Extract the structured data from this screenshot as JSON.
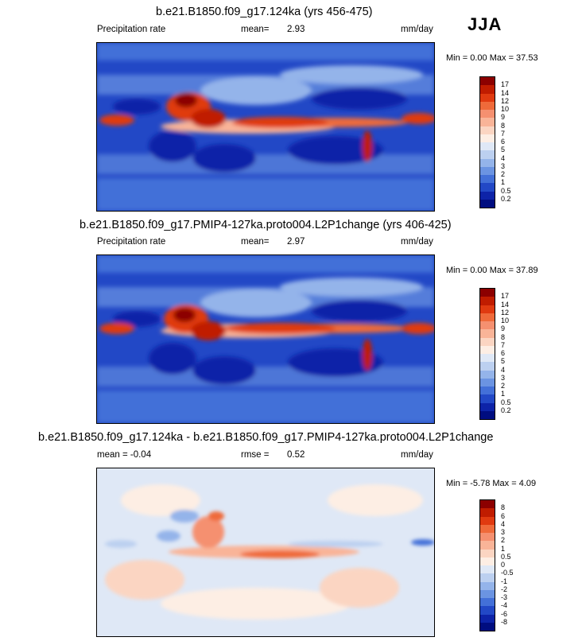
{
  "season": "JJA",
  "panels": [
    {
      "title": "b.e21.B1850.f09_g17.124ka (yrs 456-475)",
      "left_label": "Precipitation rate",
      "center_label": "mean=",
      "center_value": "2.93",
      "right_label": "mm/day",
      "minmax": "Min =   0.00 Max =  37.53",
      "colorbar": {
        "labels": [
          "17",
          "14",
          "12",
          "10",
          "9",
          "8",
          "7",
          "6",
          "5",
          "4",
          "3",
          "2",
          "1",
          "0.5",
          "0.2"
        ],
        "colors": [
          "#8c0000",
          "#c01c00",
          "#e03a10",
          "#ef6a3a",
          "#f59070",
          "#f9b498",
          "#fbd5c2",
          "#fdeee4",
          "#dfe8f6",
          "#bcd0f0",
          "#94b4ea",
          "#6b94e2",
          "#4370d8",
          "#2248c6",
          "#0d23a8",
          "#000d80"
        ]
      }
    },
    {
      "title": "b.e21.B1850.f09_g17.PMIP4-127ka.proto004.L2P1change (yrs 406-425)",
      "left_label": "Precipitation rate",
      "center_label": "mean=",
      "center_value": "2.97",
      "right_label": "mm/day",
      "minmax": "Min =   0.00 Max =  37.89",
      "colorbar": {
        "labels": [
          "17",
          "14",
          "12",
          "10",
          "9",
          "8",
          "7",
          "6",
          "5",
          "4",
          "3",
          "2",
          "1",
          "0.5",
          "0.2"
        ],
        "colors": [
          "#8c0000",
          "#c01c00",
          "#e03a10",
          "#ef6a3a",
          "#f59070",
          "#f9b498",
          "#fbd5c2",
          "#fdeee4",
          "#dfe8f6",
          "#bcd0f0",
          "#94b4ea",
          "#6b94e2",
          "#4370d8",
          "#2248c6",
          "#0d23a8",
          "#000d80"
        ]
      }
    },
    {
      "title": "b.e21.B1850.f09_g17.124ka - b.e21.B1850.f09_g17.PMIP4-127ka.proto004.L2P1change",
      "left_label": "mean =  -0.04",
      "center_label": "rmse =",
      "center_value": "0.52",
      "right_label": "mm/day",
      "minmax": "Min =  -5.78 Max =   4.09",
      "colorbar": {
        "labels": [
          "8",
          "6",
          "4",
          "3",
          "2",
          "1",
          "0.5",
          "0",
          "-0.5",
          "-1",
          "-2",
          "-3",
          "-4",
          "-6",
          "-8"
        ],
        "colors": [
          "#8c0000",
          "#c01c00",
          "#e03a10",
          "#ef6a3a",
          "#f59070",
          "#f9b498",
          "#fbd5c2",
          "#fdeee4",
          "#dfe8f6",
          "#bcd0f0",
          "#94b4ea",
          "#6b94e2",
          "#4370d8",
          "#2248c6",
          "#0d23a8",
          "#000d80"
        ]
      }
    }
  ]
}
